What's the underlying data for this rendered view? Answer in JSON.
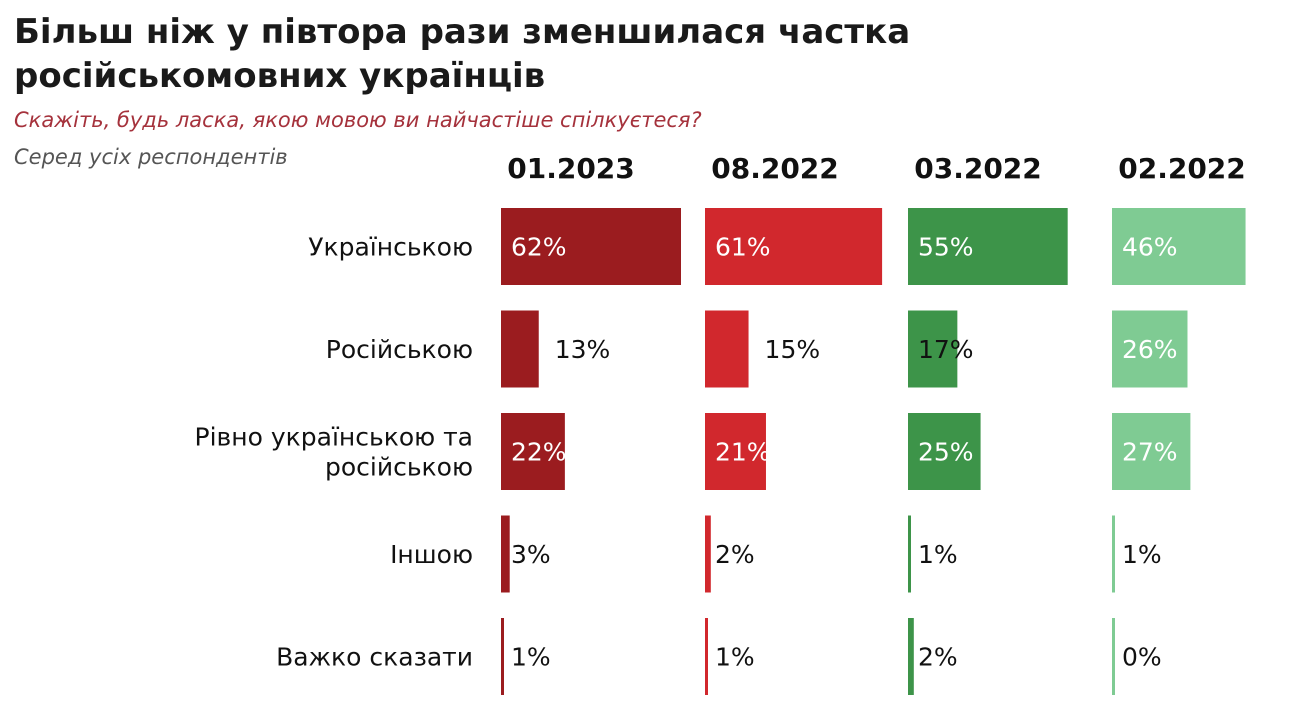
{
  "title": "Більш ніж у півтора рази зменшилася частка російськомовних українців",
  "subtitle": "Скажіть, будь ласка, якою мовою ви найчастіше спілкуєтеся?",
  "base_note": "Серед усіх респондентів",
  "chart_data": {
    "type": "bar",
    "orientation": "horizontal",
    "layout": "small-multiples",
    "unit": "%",
    "categories": [
      "Українською",
      "Російською",
      "Рівно українською та російською",
      "Іншою",
      "Важко сказати"
    ],
    "category_lines": [
      [
        "Українською"
      ],
      [
        "Російською"
      ],
      [
        "Рівно українською та",
        "російською"
      ],
      [
        "Іншою"
      ],
      [
        "Важко сказати"
      ]
    ],
    "series": [
      {
        "name": "01.2023",
        "color": "#9b1c1f",
        "values": [
          62,
          13,
          22,
          3,
          1
        ],
        "labels": [
          "62%",
          "13%",
          "22%",
          "3%",
          "1%"
        ]
      },
      {
        "name": "08.2022",
        "color": "#d1282d",
        "values": [
          61,
          15,
          21,
          2,
          1
        ],
        "labels": [
          "61%",
          "15%",
          "21%",
          "2%",
          "1%"
        ]
      },
      {
        "name": "03.2022",
        "color": "#3d9449",
        "values": [
          55,
          17,
          25,
          1,
          2
        ],
        "labels": [
          "55%",
          "17%",
          "25%",
          "1%",
          "2%"
        ]
      },
      {
        "name": "02.2022",
        "color": "#7fcb93",
        "values": [
          46,
          26,
          27,
          1,
          0
        ],
        "labels": [
          "46%",
          "26%",
          "27%",
          "1%",
          "0%"
        ]
      }
    ],
    "xlim": [
      0,
      62
    ],
    "grid": false,
    "legend": "none"
  }
}
